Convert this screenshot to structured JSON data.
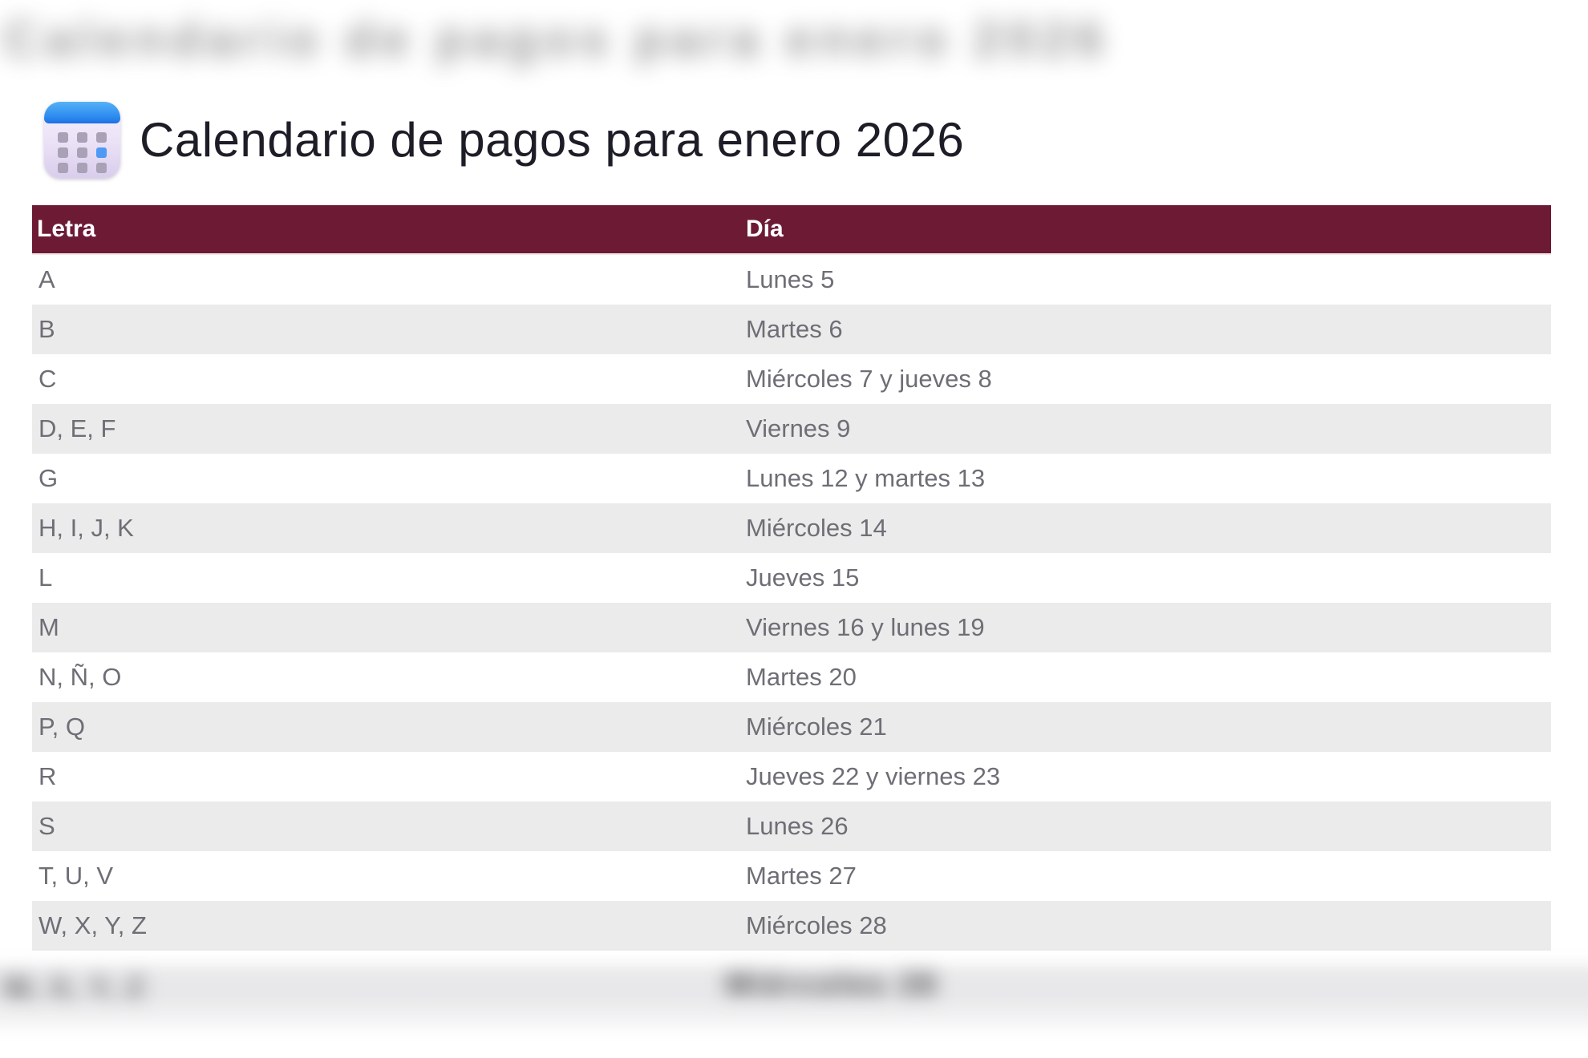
{
  "page": {
    "title": "Calendario de pagos para enero 2026",
    "title_icon": "calendar-icon"
  },
  "table": {
    "columns": [
      "Letra",
      "Día"
    ],
    "rows": [
      {
        "letra": "A",
        "dia": "Lunes 5"
      },
      {
        "letra": "B",
        "dia": "Martes 6"
      },
      {
        "letra": "C",
        "dia": "Miércoles 7 y jueves 8"
      },
      {
        "letra": "D, E, F",
        "dia": "Viernes 9"
      },
      {
        "letra": "G",
        "dia": "Lunes 12 y martes 13"
      },
      {
        "letra": "H, I, J, K",
        "dia": "Miércoles 14"
      },
      {
        "letra": "L",
        "dia": "Jueves 15"
      },
      {
        "letra": "M",
        "dia": "Viernes 16 y lunes 19"
      },
      {
        "letra": "N, Ñ, O",
        "dia": "Martes 20"
      },
      {
        "letra": "P, Q",
        "dia": "Miércoles 21"
      },
      {
        "letra": "R",
        "dia": "Jueves 22 y viernes 23"
      },
      {
        "letra": "S",
        "dia": "Lunes 26"
      },
      {
        "letra": "T, U, V",
        "dia": "Martes 27"
      },
      {
        "letra": "W, X, Y, Z",
        "dia": "Miércoles 28"
      }
    ]
  },
  "blur_ghosts": {
    "top_text": "Calendario de pagos para enero 2026",
    "bottom_letra": "W, X, Y, Z",
    "bottom_dia": "Miércoles 28"
  },
  "colors": {
    "header_bg": "#6d1b34",
    "header_text": "#ffffff",
    "row_alt_bg": "#ebebeb",
    "body_text": "#6e6e76",
    "title_text": "#1d1d27"
  }
}
